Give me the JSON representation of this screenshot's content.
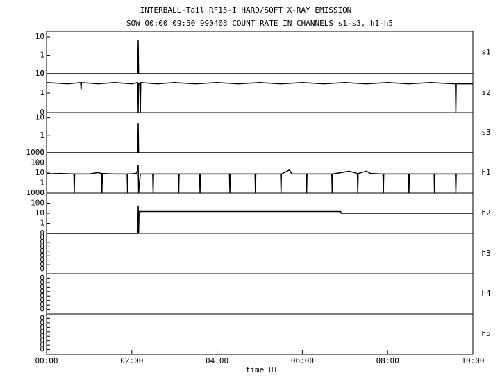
{
  "chart_data": {
    "type": "stacked-log-lines",
    "title": "INTERBALL-Tail RF15-I HARD/SOFT X-RAY EMISSION",
    "subtitle": "SOW 00:00 09:50 990403  COUNT RATE IN CHANNELS s1-s3, h1-h5",
    "x_label": "time UT",
    "xlim": [
      0,
      10
    ],
    "xticks": [
      {
        "value": 0,
        "label": "00:00"
      },
      {
        "value": 2,
        "label": "02:00"
      },
      {
        "value": 4,
        "label": "04:00"
      },
      {
        "value": 6,
        "label": "06:00"
      },
      {
        "value": 8,
        "label": "08:00"
      },
      {
        "value": 10,
        "label": "10:00"
      }
    ],
    "color": "#000000",
    "log_y": true,
    "panels": [
      {
        "name": "s1",
        "ylim": [
          0.1,
          20
        ],
        "yticks": [
          10,
          1,
          {
            "value": 0.1,
            "label": "0"
          }
        ],
        "x": [
          0,
          2.14,
          2.15,
          2.16,
          10
        ],
        "values": [
          0.1,
          0.1,
          7,
          0.1,
          0.1
        ]
      },
      {
        "name": "s2",
        "ylim": [
          0.1,
          10
        ],
        "yticks": [
          10,
          1,
          {
            "value": 0.1,
            "label": "0"
          }
        ],
        "x": [
          0,
          0.5,
          0.8,
          0.81,
          0.82,
          1.2,
          1.6,
          2.0,
          2.14,
          2.15,
          2.16,
          2.19,
          2.2,
          2.21,
          2.6,
          3.0,
          3.5,
          4.0,
          4.5,
          5.0,
          5.5,
          6.0,
          6.5,
          7.0,
          7.5,
          8.0,
          8.5,
          9.0,
          9.59,
          9.6,
          9.61,
          10
        ],
        "values": [
          3.5,
          3,
          3.5,
          1.5,
          3.5,
          3,
          3.5,
          3,
          3.5,
          0.1,
          3,
          3,
          0.1,
          3.5,
          3,
          3.5,
          3,
          3.5,
          3,
          3.5,
          3,
          3.5,
          3,
          3.5,
          3,
          3.5,
          3,
          3.5,
          3,
          0.1,
          3,
          3
        ]
      },
      {
        "name": "s3",
        "ylim": [
          0.1,
          20
        ],
        "yticks": [
          10,
          1,
          {
            "value": 0.1,
            "label": "0"
          }
        ],
        "x": [
          0,
          2.14,
          2.15,
          2.16,
          10
        ],
        "values": [
          0.1,
          0.1,
          5,
          0.1,
          0.1
        ]
      },
      {
        "name": "h1",
        "ylim": [
          0.1,
          1000
        ],
        "yticks": [
          1000,
          100,
          10,
          1,
          {
            "value": 0.1,
            "label": "0"
          }
        ],
        "x": [
          0,
          0.3,
          0.64,
          0.65,
          0.66,
          1.0,
          1.2,
          1.29,
          1.3,
          1.31,
          1.6,
          1.89,
          1.9,
          1.91,
          2.1,
          2.14,
          2.15,
          2.16,
          2.2,
          2.49,
          2.5,
          2.51,
          2.8,
          3.09,
          3.1,
          3.11,
          3.59,
          3.6,
          3.61,
          4.0,
          4.29,
          4.3,
          4.31,
          4.89,
          4.9,
          4.91,
          5.49,
          5.5,
          5.51,
          5.7,
          5.75,
          6.09,
          6.1,
          6.11,
          6.69,
          6.7,
          6.71,
          7.1,
          7.29,
          7.3,
          7.31,
          7.5,
          7.6,
          7.89,
          7.9,
          7.91,
          8.49,
          8.5,
          8.51,
          9.09,
          9.1,
          9.11,
          9.59,
          9.6,
          9.61,
          10
        ],
        "values": [
          8,
          9,
          8,
          0.1,
          8,
          8,
          11,
          9,
          0.1,
          9,
          8,
          8,
          0.1,
          8,
          9,
          20,
          60,
          0.1,
          8,
          8,
          0.1,
          8,
          8,
          8,
          0.1,
          8,
          8,
          0.1,
          8,
          8,
          8,
          0.1,
          8,
          8,
          0.1,
          8,
          8,
          0.1,
          8,
          20,
          8,
          8,
          0.1,
          8,
          8,
          0.1,
          8,
          15,
          9,
          0.1,
          9,
          15,
          9,
          8,
          0.1,
          8,
          8,
          0.1,
          8,
          8,
          0.1,
          8,
          8,
          0.1,
          8,
          8
        ]
      },
      {
        "name": "h2",
        "ylim": [
          0.1,
          1000
        ],
        "yticks": [
          1000,
          100,
          10,
          1,
          {
            "value": 0.1,
            "label": "0"
          }
        ],
        "x": [
          0,
          2.14,
          2.15,
          2.16,
          2.17,
          6.9,
          6.91,
          10
        ],
        "values": [
          0.1,
          0.1,
          60,
          0.1,
          15,
          15,
          10,
          10
        ]
      },
      {
        "name": "h3",
        "ylim": [
          1e-09,
          1
        ],
        "yticks": [
          {
            "value": 0.1,
            "label": "0"
          },
          {
            "value": 0.01,
            "label": "0"
          },
          {
            "value": 0.001,
            "label": "0"
          },
          {
            "value": 0.0001,
            "label": "0"
          },
          {
            "value": 1e-05,
            "label": "0"
          },
          {
            "value": 1e-06,
            "label": "0"
          },
          {
            "value": 1e-07,
            "label": "0"
          },
          {
            "value": 1e-08,
            "label": "0"
          }
        ],
        "x": [],
        "values": []
      },
      {
        "name": "h4",
        "ylim": [
          1e-09,
          1
        ],
        "yticks": [
          {
            "value": 0.1,
            "label": "0"
          },
          {
            "value": 0.01,
            "label": "0"
          },
          {
            "value": 0.001,
            "label": "0"
          },
          {
            "value": 0.0001,
            "label": "0"
          },
          {
            "value": 1e-05,
            "label": "0"
          },
          {
            "value": 1e-06,
            "label": "0"
          },
          {
            "value": 1e-07,
            "label": "0"
          },
          {
            "value": 1e-08,
            "label": "0"
          }
        ],
        "x": [],
        "values": []
      },
      {
        "name": "h5",
        "ylim": [
          1e-09,
          1
        ],
        "yticks": [
          {
            "value": 0.1,
            "label": "0"
          },
          {
            "value": 0.01,
            "label": "0"
          },
          {
            "value": 0.001,
            "label": "0"
          },
          {
            "value": 0.0001,
            "label": "0"
          },
          {
            "value": 1e-05,
            "label": "0"
          },
          {
            "value": 1e-06,
            "label": "0"
          },
          {
            "value": 1e-07,
            "label": "0"
          },
          {
            "value": 1e-08,
            "label": "0"
          }
        ],
        "x": [],
        "values": []
      }
    ]
  }
}
